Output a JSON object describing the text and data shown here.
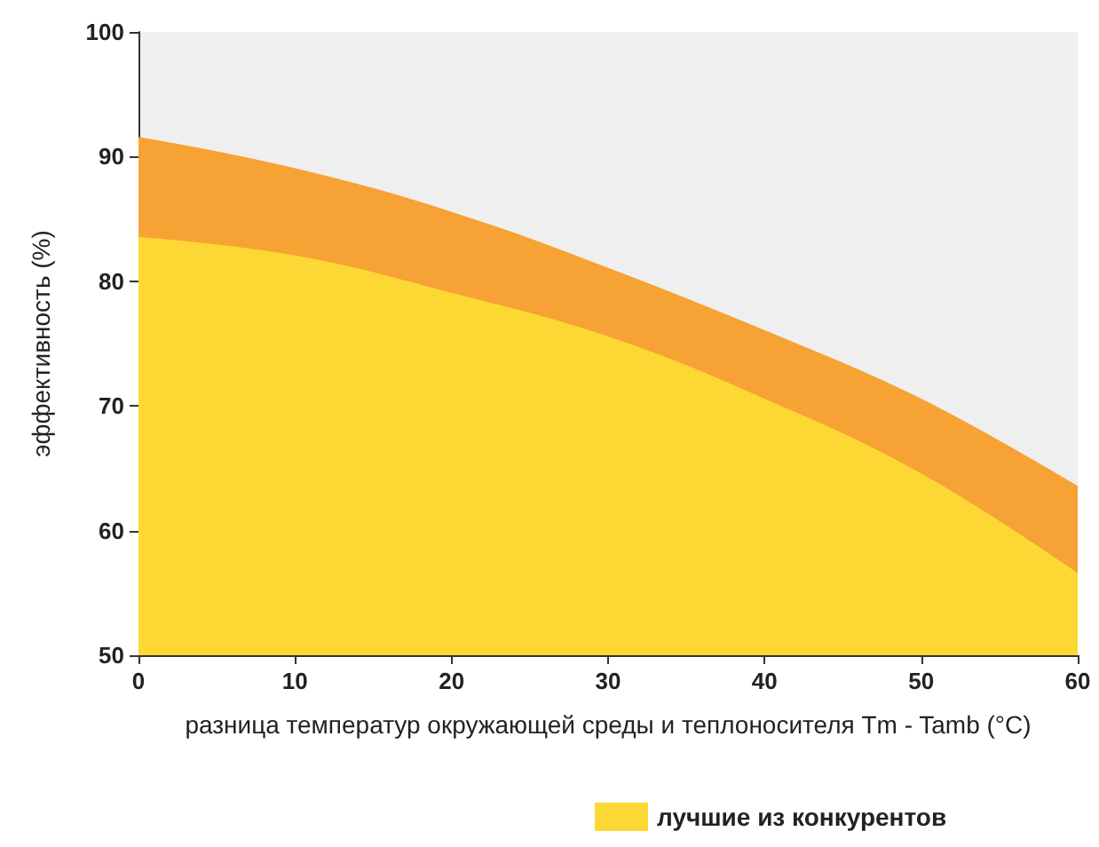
{
  "chart_data": {
    "type": "area",
    "xlabel": "разница температур окружающей среды и теплоносителя Tm - Tamb (°C)",
    "ylabel": "эффективность (%)",
    "x": [
      0,
      10,
      20,
      30,
      40,
      50,
      60
    ],
    "series": [
      {
        "color": "#f7a234",
        "values": [
          91.5,
          89,
          85.5,
          81,
          76,
          70.5,
          63.5
        ]
      },
      {
        "name": "лучшие из конкурентов",
        "color": "#fdd835",
        "values": [
          83.5,
          82,
          79,
          75.5,
          70.5,
          64.5,
          56.5
        ]
      }
    ],
    "xlim": [
      0,
      60
    ],
    "xticks": [
      0,
      10,
      20,
      30,
      40,
      50,
      60
    ],
    "ylim": [
      50,
      100
    ],
    "yticks": [
      50,
      60,
      70,
      80,
      90,
      100
    ],
    "grid": false,
    "legend": "bottom"
  }
}
